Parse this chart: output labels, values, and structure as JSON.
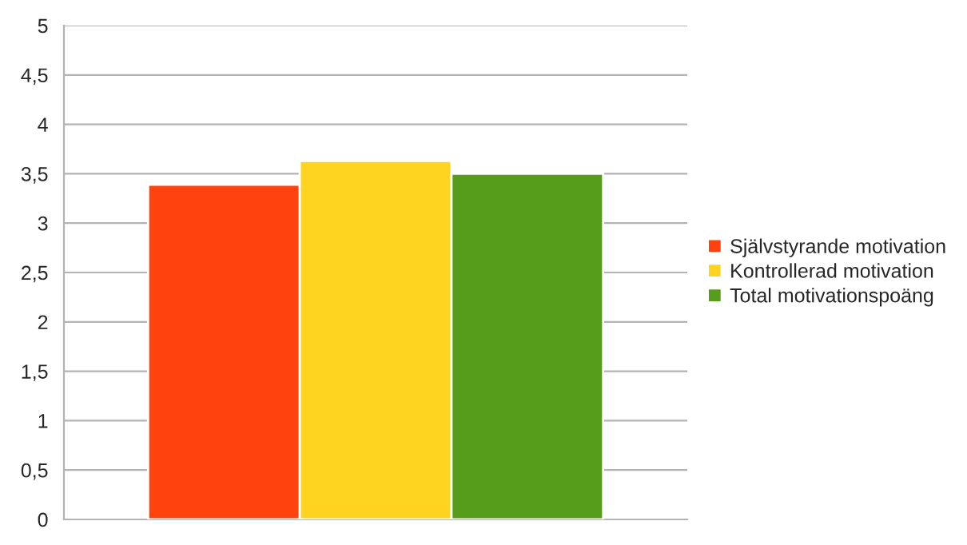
{
  "chart_data": {
    "type": "bar",
    "categories": [
      null
    ],
    "series": [
      {
        "name": "Självstyrande motivation",
        "color": "#ff420e",
        "values": [
          3.39
        ]
      },
      {
        "name": "Kontrollerad motivation",
        "color": "#ffd320",
        "values": [
          3.63
        ]
      },
      {
        "name": "Total motivationspoäng",
        "color": "#579d1c",
        "values": [
          3.5
        ]
      }
    ],
    "ylim": [
      0,
      5
    ],
    "yticks": [
      0,
      {
        "value": 0.5,
        "label": "0,5"
      },
      1,
      {
        "value": 1.5,
        "label": "1,5"
      },
      2,
      {
        "value": 2.5,
        "label": "2,5"
      },
      3,
      {
        "value": 3.5,
        "label": "3,5"
      },
      4,
      {
        "value": 4.5,
        "label": "4,5"
      },
      5
    ],
    "grid": "y",
    "legend": "right"
  }
}
